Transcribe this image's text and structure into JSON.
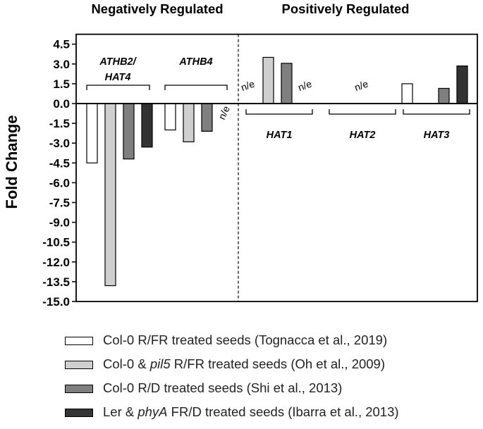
{
  "chart_data": {
    "type": "bar",
    "group_titles": {
      "left": "Negatively Regulated",
      "right": "Positively Regulated"
    },
    "ylabel": "Fold Change",
    "ylim": [
      -15.0,
      5.25
    ],
    "yticks": [
      4.5,
      3.0,
      1.5,
      0.0,
      -1.5,
      -3.0,
      -4.5,
      -6.0,
      -7.5,
      -9.0,
      -10.5,
      -12.0,
      -13.5,
      -15.0
    ],
    "ytick_labels": [
      "4.5",
      "3.0",
      "1.5",
      "0.0",
      "-1.5",
      "-3.0",
      "-4.5",
      "-6.0",
      "-7.5",
      "-9.0",
      "-10.5",
      "-12.0",
      "-13.5",
      "-15.0"
    ],
    "na_label": "n/e",
    "genes": [
      {
        "label_lines": [
          "ATHB2/",
          "HAT4"
        ],
        "values": [
          -4.5,
          -13.8,
          -4.2,
          -3.3
        ]
      },
      {
        "label_lines": [
          "ATHB4"
        ],
        "values": [
          -2.0,
          -2.9,
          -2.1,
          null
        ]
      },
      {
        "label_lines": [
          "HAT1"
        ],
        "values": [
          null,
          3.5,
          3.05,
          null
        ]
      },
      {
        "label_lines": [
          "HAT2"
        ],
        "values": [
          null,
          null,
          null,
          null
        ]
      },
      {
        "label_lines": [
          "HAT3"
        ],
        "values": [
          1.5,
          null,
          1.15,
          2.85
        ]
      }
    ],
    "series": [
      {
        "name": "Col-0 R/FR treated seeds (Tognacca et al., 2019)",
        "color": "#ffffff"
      },
      {
        "name": "Col-0 & pil5 R/FR treated seeds (Oh et al., 2009)",
        "color": "#cfcfcf"
      },
      {
        "name": "Col-0 R/D treated seeds (Shi et al., 2013)",
        "color": "#7f7f7f"
      },
      {
        "name": "Ler & phyA FR/D treated seeds (Ibarra et al., 2013)",
        "color": "#333333"
      }
    ]
  },
  "legend": [
    {
      "pre": "Col-0 ",
      "italic": "",
      "post": "R/FR treated seeds (Tognacca et al., 2019)"
    },
    {
      "pre": "Col-0 & ",
      "italic": "pil5",
      "post": " R/FR treated seeds (Oh et al., 2009)"
    },
    {
      "pre": "Col-0 ",
      "italic": "",
      "post": "R/D treated seeds (Shi et al., 2013)"
    },
    {
      "pre": "Ler & ",
      "italic": "phyA",
      "post": " FR/D treated seeds (Ibarra et al., 2013)"
    }
  ]
}
